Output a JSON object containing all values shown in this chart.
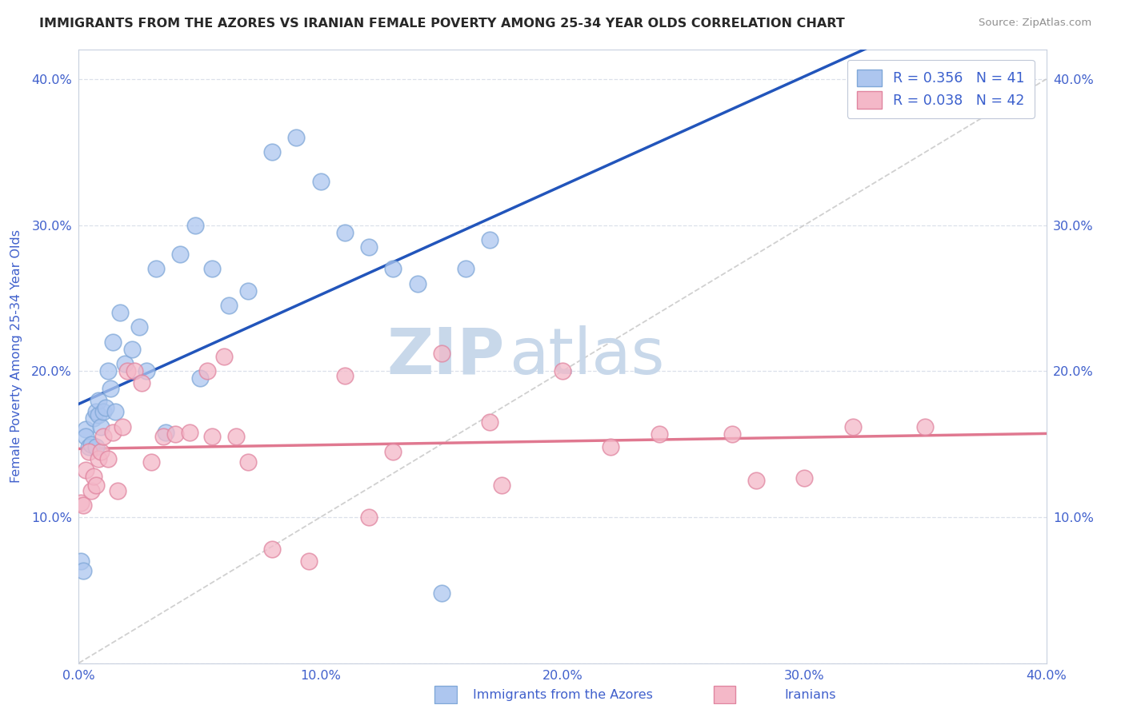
{
  "title": "IMMIGRANTS FROM THE AZORES VS IRANIAN FEMALE POVERTY AMONG 25-34 YEAR OLDS CORRELATION CHART",
  "source_text": "Source: ZipAtlas.com",
  "ylabel": "Female Poverty Among 25-34 Year Olds",
  "xlim": [
    0.0,
    0.4
  ],
  "ylim": [
    0.0,
    0.42
  ],
  "xtick_vals": [
    0.0,
    0.1,
    0.2,
    0.3,
    0.4
  ],
  "ytick_vals": [
    0.0,
    0.1,
    0.2,
    0.3,
    0.4
  ],
  "legend_r1": "R = 0.356   N = 41",
  "legend_r2": "R = 0.038   N = 42",
  "legend_label1": "Immigrants from the Azores",
  "legend_label2": "Iranians",
  "watermark_zip": "ZIP",
  "watermark_atlas": "atlas",
  "watermark_color": "#c8d8ea",
  "background_color": "#ffffff",
  "grid_color": "#d8dde8",
  "azores_facecolor": "#adc6ef",
  "azores_edgecolor": "#80a8d8",
  "iranians_facecolor": "#f4b8c8",
  "iranians_edgecolor": "#e085a0",
  "azores_line_color": "#2255bb",
  "iranians_line_color": "#e07890",
  "diagonal_color": "#c8c8c8",
  "title_color": "#282828",
  "axis_color": "#4060cc",
  "source_color": "#909090",
  "legend_text_color": "#3a5fcd",
  "azores_x": [
    0.001,
    0.002,
    0.003,
    0.003,
    0.004,
    0.005,
    0.006,
    0.007,
    0.007,
    0.008,
    0.008,
    0.009,
    0.01,
    0.011,
    0.012,
    0.013,
    0.014,
    0.015,
    0.017,
    0.019,
    0.022,
    0.025,
    0.028,
    0.032,
    0.036,
    0.042,
    0.048,
    0.055,
    0.062,
    0.07,
    0.08,
    0.09,
    0.1,
    0.11,
    0.12,
    0.13,
    0.14,
    0.15,
    0.16,
    0.17,
    0.05
  ],
  "azores_y": [
    0.07,
    0.063,
    0.16,
    0.155,
    0.148,
    0.15,
    0.168,
    0.172,
    0.148,
    0.17,
    0.18,
    0.162,
    0.172,
    0.175,
    0.2,
    0.188,
    0.22,
    0.172,
    0.24,
    0.205,
    0.215,
    0.23,
    0.2,
    0.27,
    0.158,
    0.28,
    0.3,
    0.27,
    0.245,
    0.255,
    0.35,
    0.36,
    0.33,
    0.295,
    0.285,
    0.27,
    0.26,
    0.048,
    0.27,
    0.29,
    0.195
  ],
  "iranians_x": [
    0.001,
    0.002,
    0.003,
    0.004,
    0.005,
    0.006,
    0.007,
    0.008,
    0.009,
    0.01,
    0.012,
    0.014,
    0.016,
    0.018,
    0.02,
    0.023,
    0.026,
    0.03,
    0.035,
    0.04,
    0.046,
    0.053,
    0.06,
    0.07,
    0.08,
    0.095,
    0.11,
    0.13,
    0.15,
    0.175,
    0.2,
    0.22,
    0.24,
    0.27,
    0.3,
    0.32,
    0.35,
    0.055,
    0.065,
    0.17,
    0.28,
    0.12
  ],
  "iranians_y": [
    0.11,
    0.108,
    0.132,
    0.145,
    0.118,
    0.128,
    0.122,
    0.14,
    0.145,
    0.155,
    0.14,
    0.158,
    0.118,
    0.162,
    0.2,
    0.2,
    0.192,
    0.138,
    0.155,
    0.157,
    0.158,
    0.2,
    0.21,
    0.138,
    0.078,
    0.07,
    0.197,
    0.145,
    0.212,
    0.122,
    0.2,
    0.148,
    0.157,
    0.157,
    0.127,
    0.162,
    0.162,
    0.155,
    0.155,
    0.165,
    0.125,
    0.1
  ]
}
